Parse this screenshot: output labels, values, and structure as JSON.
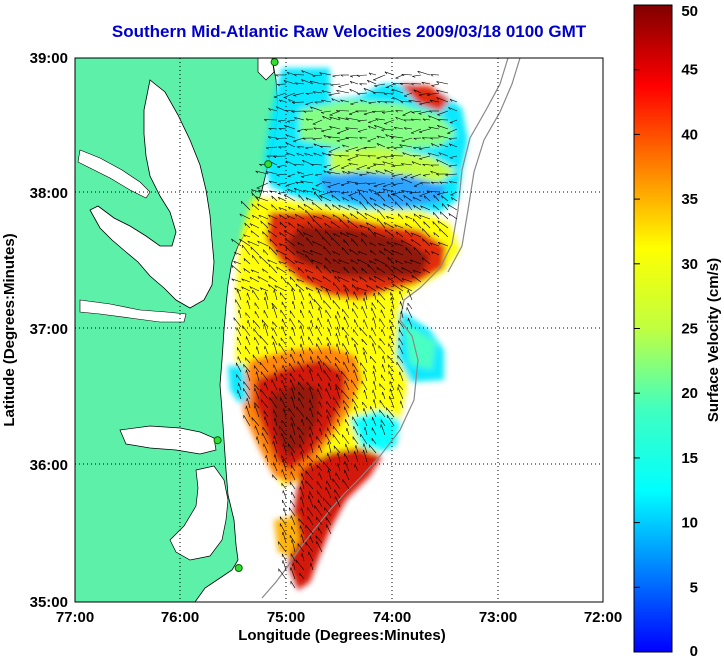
{
  "title": "Southern Mid-Atlantic Raw Velocities 2009/03/18 0100 GMT",
  "map": {
    "xlabel": "Longitude (Degrees:Minutes)",
    "ylabel": "Latitude (Degrees:Minutes)",
    "x_ticks": [
      "77:00",
      "76:00",
      "75:00",
      "74:00",
      "73:00",
      "72:00"
    ],
    "y_ticks": [
      "39:00",
      "38:00",
      "37:00",
      "36:00",
      "35:00"
    ],
    "lon_range": [
      -77,
      -72
    ],
    "lat_range": [
      35,
      39
    ],
    "land_color": "#5cf0a8",
    "grid": "dotted"
  },
  "colorbar": {
    "label": "Surface Velocity (cm/s)",
    "ticks": [
      "50",
      "45",
      "40",
      "35",
      "30",
      "25",
      "20",
      "15",
      "10",
      "5",
      "0"
    ],
    "range": [
      0,
      50
    ],
    "colormap": "jet"
  },
  "stations": [
    {
      "lon": -75.11,
      "lat": 38.97
    },
    {
      "lon": -75.17,
      "lat": 38.22
    },
    {
      "lon": -75.65,
      "lat": 36.19
    },
    {
      "lon": -75.45,
      "lat": 35.25
    }
  ]
}
